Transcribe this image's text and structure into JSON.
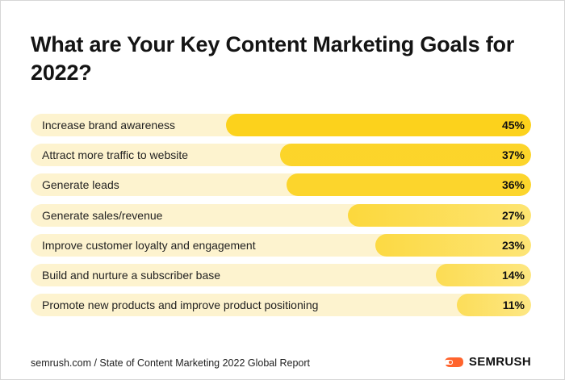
{
  "colors": {
    "track": "#fdf3cf",
    "bar_gradient": [
      "#fcd21c",
      "#fbe79a"
    ],
    "brand_orange": "#ff642d"
  },
  "footer": {
    "source": "semrush.com / State of Content Marketing 2022 Global Report",
    "brand": "SEMRUSH",
    "brand_icon": "semrush-flame-icon"
  },
  "chart_data": {
    "type": "bar",
    "orientation": "horizontal",
    "title": "What are Your Key Content Marketing Goals for 2022?",
    "xlim": [
      0,
      100
    ],
    "categories": [
      "Increase brand awareness",
      "Attract more traffic to website",
      "Generate leads",
      "Generate sales/revenue",
      "Improve customer loyalty and engagement",
      "Build and nurture a subscriber base",
      "Promote new products and improve product positioning"
    ],
    "values": [
      45,
      37,
      36,
      27,
      23,
      14,
      11
    ],
    "value_labels": [
      "45%",
      "37%",
      "36%",
      "27%",
      "23%",
      "14%",
      "11%"
    ]
  }
}
